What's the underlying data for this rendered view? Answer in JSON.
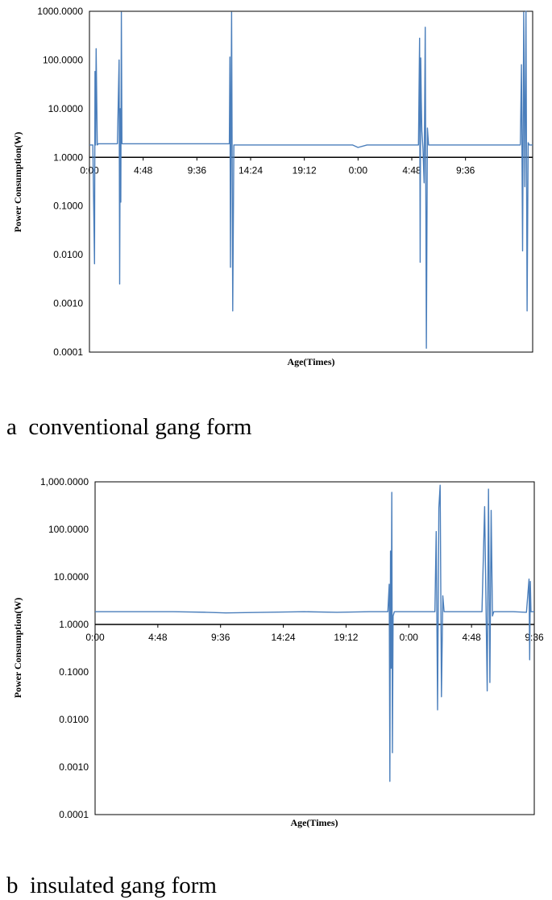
{
  "chart_data": [
    {
      "id": "a",
      "type": "line",
      "yscale": "log",
      "ylim": [
        0.0001,
        1000
      ],
      "xlabel": "Age(Times)",
      "ylabel": "Power Consumption(W)",
      "y_tick_values": [
        0.0001,
        0.001,
        0.01,
        0.1,
        1,
        10,
        100,
        1000
      ],
      "y_tick_labels": [
        "0.0001",
        "0.0010",
        "0.0100",
        "0.1000",
        "1.0000",
        "10.0000",
        "100.0000",
        "1000.0000"
      ],
      "x_range": [
        0,
        39.6
      ],
      "x_tick_values": [
        0,
        4.8,
        9.6,
        14.4,
        19.2,
        24,
        28.8,
        33.6
      ],
      "x_tick_labels": [
        "0:00",
        "4:48",
        "9:36",
        "14:24",
        "19:12",
        "0:00",
        "4:48",
        "9:36"
      ],
      "baseline_W": 1.8,
      "caption": "a  conventional gang form",
      "series": [
        {
          "name": "Power consumption",
          "x": [
            0,
            0.3,
            0.45,
            0.5,
            0.55,
            0.6,
            0.7,
            0.8,
            1.0,
            1.5,
            2.5,
            2.65,
            2.7,
            2.75,
            2.8,
            2.85,
            2.9,
            3.0,
            3.2,
            5,
            8,
            11,
            12.5,
            12.55,
            12.6,
            12.65,
            12.7,
            12.8,
            12.9,
            13.1,
            16,
            20,
            23.5,
            24,
            24.8,
            26,
            28.5,
            29.4,
            29.5,
            29.55,
            29.6,
            29.65,
            29.7,
            29.8,
            29.9,
            30.0,
            30.1,
            30.2,
            30.3,
            30.5,
            31,
            33,
            36.2,
            38.5,
            38.6,
            38.7,
            38.8,
            38.9,
            39.0,
            39.1,
            39.2,
            39.3,
            39.6
          ],
          "values": [
            1.8,
            1.8,
            0.0065,
            58,
            1.8,
            170,
            1.8,
            1.9,
            1.9,
            1.9,
            1.9,
            100,
            0.0025,
            10,
            0.12,
            950,
            1.9,
            1.9,
            1.9,
            1.9,
            1.9,
            1.9,
            1.9,
            115,
            0.0055,
            8,
            950,
            0.0007,
            1.8,
            1.8,
            1.8,
            1.8,
            1.8,
            1.6,
            1.8,
            1.8,
            1.8,
            1.8,
            280,
            0.007,
            110,
            15,
            3.5,
            1.5,
            0.3,
            470,
            0.00012,
            4,
            1.8,
            1.8,
            1.8,
            1.8,
            1.8,
            1.8,
            80,
            0.012,
            950,
            0.25,
            1000,
            0.0007,
            2,
            1.8,
            1.8
          ]
        }
      ]
    },
    {
      "id": "b",
      "type": "line",
      "yscale": "log",
      "ylim": [
        0.0001,
        1000
      ],
      "xlabel": "Age(Times)",
      "ylabel": "Power Consumption(W)",
      "y_tick_values": [
        0.0001,
        0.001,
        0.01,
        0.1,
        1,
        10,
        100,
        1000
      ],
      "y_tick_labels": [
        "0.0001",
        "0.0010",
        "0.0100",
        "0.1000",
        "1.0000",
        "10.0000",
        "100.0000",
        "1,000.0000"
      ],
      "x_range": [
        0,
        33.6
      ],
      "x_tick_values": [
        0,
        4.8,
        9.6,
        14.4,
        19.2,
        24,
        28.8,
        33.6
      ],
      "x_tick_labels": [
        "0:00",
        "4:48",
        "9:36",
        "14:24",
        "19:12",
        "0:00",
        "4:48",
        "9:36"
      ],
      "baseline_W": 1.85,
      "caption": "b  insulated gang form",
      "series": [
        {
          "name": "Power consumption",
          "x": [
            0,
            3,
            6,
            8.5,
            10,
            13,
            16,
            18.5,
            21,
            22.4,
            22.5,
            22.55,
            22.6,
            22.65,
            22.7,
            22.75,
            22.8,
            22.9,
            23.3,
            24.5,
            25.5,
            26.0,
            26.1,
            26.2,
            26.3,
            26.4,
            26.5,
            26.6,
            26.7,
            27.0,
            28.5,
            29.6,
            29.8,
            30.0,
            30.1,
            30.2,
            30.3,
            30.4,
            30.5,
            30.8,
            32,
            33.0,
            33.2,
            33.25,
            33.3,
            33.35,
            33.5,
            33.6
          ],
          "values": [
            1.85,
            1.85,
            1.85,
            1.8,
            1.75,
            1.8,
            1.85,
            1.8,
            1.85,
            1.85,
            7,
            0.0005,
            35,
            0.12,
            600,
            0.002,
            1.5,
            1.85,
            1.85,
            1.85,
            1.85,
            1.85,
            90,
            0.016,
            280,
            850,
            0.03,
            4,
            1.85,
            1.85,
            1.85,
            1.85,
            300,
            0.04,
            700,
            0.06,
            250,
            1.5,
            1.85,
            1.85,
            1.85,
            1.8,
            9,
            0.18,
            8,
            1.85,
            1.85,
            1.85
          ]
        }
      ]
    }
  ]
}
